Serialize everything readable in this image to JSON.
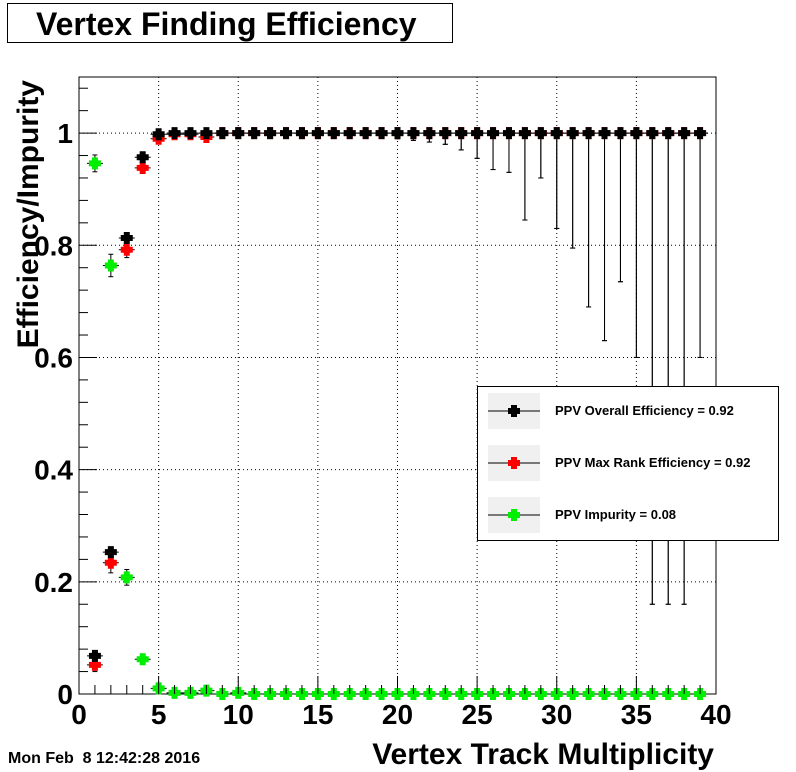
{
  "title": "Vertex Finding Efficiency",
  "timestamp": "Mon Feb  8 12:42:28 2016",
  "colors": {
    "overall": "#000000",
    "max_rank": "#ff0000",
    "impurity": "#00ee00"
  },
  "chart_data": {
    "type": "scatter",
    "title": "Vertex Finding Efficiency",
    "xlabel": "Vertex Track Multiplicity",
    "ylabel": "Efficiency/Impurity",
    "xlim": [
      0,
      40
    ],
    "ylim": [
      0,
      1.1
    ],
    "x_ticks": [
      "0",
      "5",
      "10",
      "15",
      "20",
      "25",
      "30",
      "35",
      "40"
    ],
    "y_ticks": [
      "0",
      "0.2",
      "0.4",
      "0.6",
      "0.8",
      "1"
    ],
    "grid": true,
    "legend_position": "right",
    "x": [
      1,
      2,
      3,
      4,
      5,
      6,
      7,
      8,
      9,
      10,
      11,
      12,
      13,
      14,
      15,
      16,
      17,
      18,
      19,
      20,
      21,
      22,
      23,
      24,
      25,
      26,
      27,
      28,
      29,
      30,
      31,
      32,
      33,
      34,
      35,
      36,
      37,
      38,
      39
    ],
    "series": [
      {
        "name": "PPV Overall Efficiency = 0.92",
        "color": "#000000",
        "values": [
          0.068,
          0.253,
          0.813,
          0.957,
          0.998,
          1,
          1,
          1,
          1,
          1,
          1,
          1,
          1,
          1,
          1,
          1,
          1,
          1,
          1,
          1,
          1,
          1,
          1,
          1,
          1,
          1,
          1,
          1,
          1,
          1,
          1,
          1,
          1,
          1,
          1,
          1,
          1,
          1,
          1
        ],
        "err_low": [
          0.015,
          0.02,
          0.015,
          0.01,
          0.005,
          0.003,
          0.003,
          0.003,
          0.003,
          0.003,
          0.003,
          0.003,
          0.004,
          0.004,
          0.004,
          0.005,
          0.006,
          0.007,
          0.008,
          0.01,
          0.013,
          0.016,
          0.02,
          0.03,
          0.045,
          0.065,
          0.07,
          0.155,
          0.08,
          0.17,
          0.205,
          0.31,
          0.37,
          0.265,
          0.4,
          0.84,
          0.84,
          0.84,
          0.4
        ],
        "err_high": [
          0,
          0,
          0,
          0,
          0,
          0,
          0,
          0,
          0,
          0,
          0,
          0,
          0,
          0,
          0,
          0,
          0,
          0,
          0,
          0,
          0,
          0,
          0,
          0,
          0,
          0,
          0,
          0,
          0,
          0,
          0,
          0,
          0,
          0,
          0,
          0,
          0,
          0,
          0
        ]
      },
      {
        "name": "PPV Max Rank Efficiency = 0.92",
        "color": "#ff0000",
        "values": [
          0.052,
          0.234,
          0.792,
          0.938,
          0.99,
          0.998,
          0.998,
          0.993,
          1,
          1,
          1,
          1,
          1,
          1,
          1,
          1,
          1,
          1,
          1,
          1,
          1,
          1,
          1,
          1,
          1,
          1,
          1,
          1,
          1,
          1,
          1,
          1,
          1,
          1,
          1,
          1,
          1,
          1,
          1
        ],
        "err_low": [
          0.012,
          0.018,
          0.014,
          0.01,
          0.006,
          0.003,
          0.003,
          0.004,
          0.003,
          0.003,
          0.003,
          0.003,
          0.004,
          0.004,
          0.004,
          0.005,
          0.006,
          0.007,
          0.008,
          0.01,
          0.013,
          0.016,
          0.02,
          0.03,
          0.045,
          0.065,
          0.07,
          0.155,
          0.08,
          0.17,
          0.205,
          0.31,
          0.37,
          0.265,
          0.4,
          0.84,
          0.84,
          0.84,
          0.4
        ],
        "err_high": [
          0.012,
          0.018,
          0.014,
          0.01,
          0,
          0,
          0,
          0,
          0,
          0,
          0,
          0,
          0,
          0,
          0,
          0,
          0,
          0,
          0,
          0,
          0,
          0,
          0,
          0,
          0,
          0,
          0,
          0,
          0,
          0,
          0,
          0,
          0,
          0,
          0,
          0,
          0,
          0,
          0
        ]
      },
      {
        "name": "PPV Impurity = 0.08",
        "color": "#00ee00",
        "values": [
          0.946,
          0.764,
          0.208,
          0.062,
          0.01,
          0.002,
          0.002,
          0.006,
          0,
          0.002,
          0,
          0,
          0,
          0,
          0,
          0,
          0,
          0,
          0,
          0,
          0,
          0,
          0,
          0,
          0,
          0,
          0,
          0,
          0,
          0,
          0,
          0,
          0,
          0,
          0,
          0,
          0,
          0,
          0
        ],
        "err_low": [
          0.015,
          0.02,
          0.014,
          0.008,
          0.005,
          0.002,
          0.002,
          0.003,
          0,
          0.002,
          0,
          0,
          0,
          0,
          0,
          0,
          0,
          0,
          0,
          0,
          0,
          0,
          0,
          0,
          0,
          0,
          0,
          0,
          0,
          0,
          0,
          0,
          0,
          0,
          0,
          0,
          0,
          0,
          0
        ],
        "err_high": [
          0.015,
          0.02,
          0.014,
          0.008,
          0.005,
          0.002,
          0.002,
          0.003,
          0,
          0.002,
          0,
          0,
          0,
          0,
          0,
          0,
          0,
          0,
          0,
          0,
          0,
          0,
          0,
          0,
          0,
          0,
          0,
          0,
          0,
          0,
          0,
          0,
          0,
          0,
          0,
          0,
          0,
          0,
          0
        ]
      }
    ]
  }
}
